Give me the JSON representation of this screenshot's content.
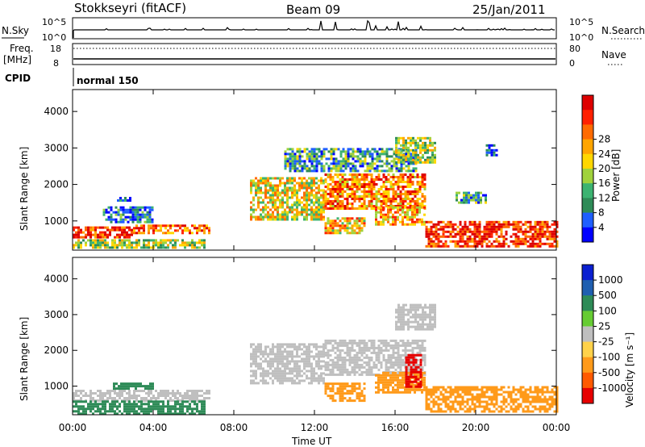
{
  "header": {
    "station": "Stokkseyri (fitACF)",
    "beam": "Beam 09",
    "date": "25/Jan/2011"
  },
  "strip_labels": {
    "nsky": "N.Sky",
    "nsearch": "N.Search",
    "freq_line1": "Freq.",
    "freq_line2": "[MHz]",
    "nave": "Nave",
    "cpid_label": "CPID",
    "cpid_value": "normal 150",
    "nsky_ticks": [
      "10^5",
      "10^0"
    ],
    "nsearch_ticks": [
      "10^5",
      "10^0"
    ],
    "freq_ticks": [
      "18",
      "8"
    ],
    "nave_ticks": [
      "80",
      "0"
    ]
  },
  "colors": {
    "power_scale": [
      "#0000ff",
      "#1f5fff",
      "#2e8b57",
      "#3cb371",
      "#a0d23c",
      "#ffd700",
      "#ffa500",
      "#ff6a00",
      "#ff2000",
      "#dd0000"
    ],
    "velocity_scale": [
      "#0a1fd0",
      "#1f5fb0",
      "#2e8b57",
      "#66cc33",
      "#bfbfbf",
      "#ffd24a",
      "#ff9a1a",
      "#ff5a00",
      "#e60000"
    ]
  },
  "chart_data": [
    {
      "type": "heatmap",
      "quantity": "power",
      "ylabel": "Slant Range [km]",
      "ylim": [
        200,
        4600
      ],
      "yticks": [
        1000,
        2000,
        3000,
        4000
      ],
      "xlim": [
        0,
        24
      ],
      "xticks": [
        "00:00",
        "04:00",
        "08:00",
        "12:00",
        "16:00",
        "20:00",
        "00:00"
      ],
      "colorbar_label": "Power [dB]",
      "colorbar_ticks": [
        "4",
        "8",
        "12",
        "16",
        "20",
        "24",
        "28"
      ],
      "regions": [
        {
          "t": [
            0.0,
            3.0
          ],
          "r": [
            550,
            850
          ],
          "level": 0.85
        },
        {
          "t": [
            3.0,
            6.8
          ],
          "r": [
            650,
            900
          ],
          "level": 0.75
        },
        {
          "t": [
            0.0,
            6.5
          ],
          "r": [
            300,
            500
          ],
          "level": 0.45
        },
        {
          "t": [
            1.5,
            4.0
          ],
          "r": [
            1000,
            1400
          ],
          "level": 0.2
        },
        {
          "t": [
            2.2,
            3.0
          ],
          "r": [
            1580,
            1660
          ],
          "level": 0.1
        },
        {
          "t": [
            8.8,
            12.5
          ],
          "r": [
            1050,
            2200
          ],
          "level": 0.55
        },
        {
          "t": [
            12.5,
            17.5
          ],
          "r": [
            1350,
            2300
          ],
          "level": 0.72
        },
        {
          "t": [
            10.5,
            17.0
          ],
          "r": [
            2350,
            3000
          ],
          "level": 0.3
        },
        {
          "t": [
            16.0,
            18.0
          ],
          "r": [
            2600,
            3300
          ],
          "level": 0.45
        },
        {
          "t": [
            12.5,
            14.5
          ],
          "r": [
            650,
            1100
          ],
          "level": 0.6
        },
        {
          "t": [
            15.0,
            17.5
          ],
          "r": [
            900,
            1400
          ],
          "level": 0.65
        },
        {
          "t": [
            17.5,
            24.0
          ],
          "r": [
            300,
            1000
          ],
          "level": 0.88
        },
        {
          "t": [
            19.0,
            20.5
          ],
          "r": [
            1500,
            1800
          ],
          "level": 0.3
        },
        {
          "t": [
            20.5,
            21.0
          ],
          "r": [
            2800,
            3100
          ],
          "level": 0.1
        }
      ]
    },
    {
      "type": "heatmap",
      "quantity": "velocity",
      "ylabel": "Slant Range [km]",
      "xlabel": "Time UT",
      "ylim": [
        200,
        4600
      ],
      "yticks": [
        1000,
        2000,
        3000,
        4000
      ],
      "xlim": [
        0,
        24
      ],
      "xticks": [
        "00:00",
        "04:00",
        "08:00",
        "12:00",
        "16:00",
        "20:00",
        "00:00"
      ],
      "colorbar_label": "Velocity [m s⁻¹]",
      "colorbar_ticks": [
        "1000",
        "500",
        "100",
        "25",
        "-25",
        "-100",
        "-500",
        "-1000"
      ],
      "regions": [
        {
          "t": [
            0.0,
            6.8
          ],
          "r": [
            600,
            900
          ],
          "vel": 0
        },
        {
          "t": [
            0.0,
            6.5
          ],
          "r": [
            250,
            600
          ],
          "vel": 80
        },
        {
          "t": [
            2.0,
            4.0
          ],
          "r": [
            950,
            1100
          ],
          "vel": 90
        },
        {
          "t": [
            8.8,
            12.5
          ],
          "r": [
            1100,
            2200
          ],
          "vel": 0
        },
        {
          "t": [
            12.5,
            17.5
          ],
          "r": [
            1350,
            2300
          ],
          "vel": 0
        },
        {
          "t": [
            16.0,
            18.0
          ],
          "r": [
            2600,
            3300
          ],
          "vel": 0
        },
        {
          "t": [
            12.5,
            14.5
          ],
          "r": [
            600,
            1100
          ],
          "vel": -150
        },
        {
          "t": [
            15.0,
            17.5
          ],
          "r": [
            800,
            1400
          ],
          "vel": -150
        },
        {
          "t": [
            16.5,
            17.3
          ],
          "r": [
            1000,
            1900
          ],
          "vel": -800
        },
        {
          "t": [
            17.5,
            24.0
          ],
          "r": [
            300,
            1000
          ],
          "vel": -130
        }
      ]
    }
  ]
}
